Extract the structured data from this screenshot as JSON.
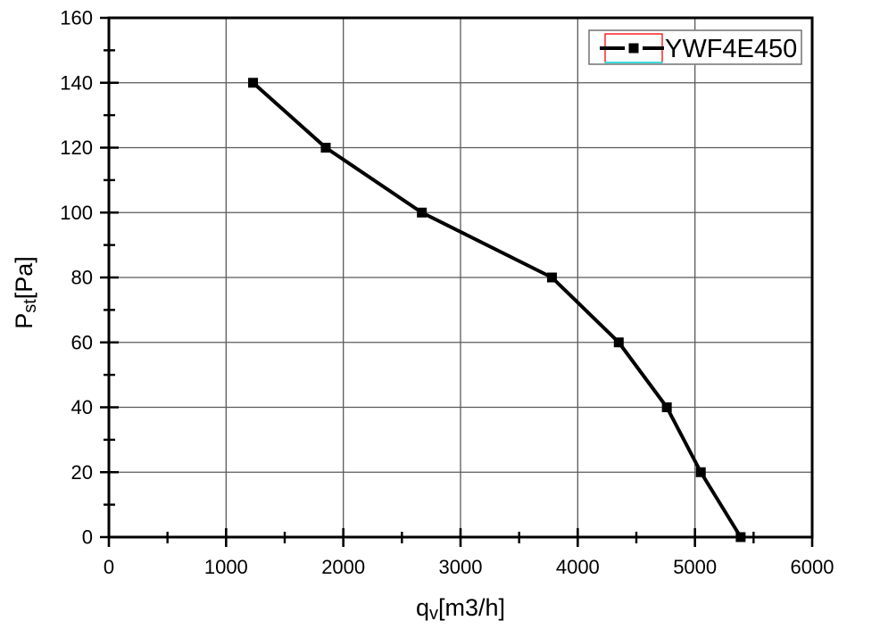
{
  "chart_data": {
    "type": "line",
    "title": "",
    "xlabel": "qv[m3/h]",
    "xlabel_parts": {
      "main": "q",
      "sub": "v",
      "rest": "[m3/h]"
    },
    "ylabel": "Pst[Pa]",
    "ylabel_parts": {
      "main": "P",
      "sub": "st",
      "rest": "[Pa]"
    },
    "xlim": [
      0,
      6000
    ],
    "ylim": [
      0,
      160
    ],
    "x_major_ticks": [
      0,
      1000,
      2000,
      3000,
      4000,
      5000,
      6000
    ],
    "x_tick_labels": [
      "0",
      "1000",
      "2000",
      "3000",
      "4000",
      "5000",
      "6000"
    ],
    "x_minor_step": 500,
    "y_major_ticks": [
      0,
      20,
      40,
      60,
      80,
      100,
      120,
      140,
      160
    ],
    "y_tick_labels": [
      "0",
      "20",
      "40",
      "60",
      "80",
      "100",
      "120",
      "140",
      "160"
    ],
    "y_minor_step": 10,
    "grid": "major-on",
    "legend_position": "top-right",
    "series": [
      {
        "name": "YWF4E450",
        "marker": "filled-square",
        "line_style": "solid",
        "color": "#000000",
        "points": [
          {
            "qv": 1230,
            "pst": 140
          },
          {
            "qv": 1850,
            "pst": 120
          },
          {
            "qv": 2670,
            "pst": 100
          },
          {
            "qv": 3780,
            "pst": 80
          },
          {
            "qv": 4350,
            "pst": 60
          },
          {
            "qv": 4760,
            "pst": 40
          },
          {
            "qv": 5050,
            "pst": 20
          },
          {
            "qv": 5390,
            "pst": 0
          }
        ]
      }
    ],
    "colors": {
      "line": "#000000",
      "frame": "#000000",
      "grid": "#5a5a5a",
      "text": "#000000",
      "background": "#ffffff",
      "legend_border": "#7a7a7a",
      "legend_fill": "#ffffff",
      "legend_artifact_red": "#ff0000",
      "legend_artifact_cyan": "#00eaea"
    }
  }
}
